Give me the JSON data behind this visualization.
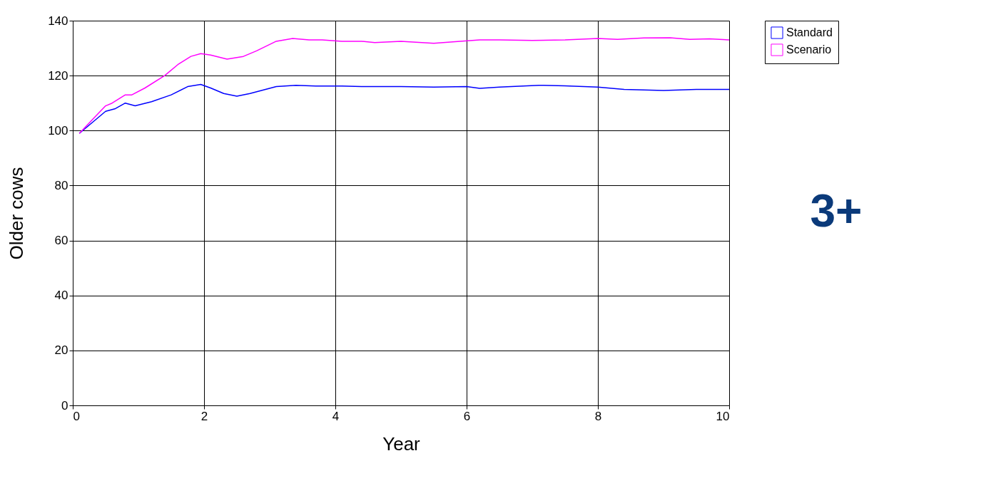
{
  "chart_data": {
    "type": "line",
    "xlabel": "Year",
    "ylabel": "Older cows",
    "xlim": [
      0,
      10
    ],
    "xticks": [
      0,
      2,
      4,
      6,
      8,
      10
    ],
    "ylim": [
      0,
      140
    ],
    "yticks": [
      0,
      20,
      40,
      60,
      80,
      100,
      120,
      140
    ],
    "grid": true,
    "legend": "top right",
    "marker": "none",
    "line_style": "solid",
    "annotations": [
      "3+"
    ],
    "series": [
      {
        "name": "Standard",
        "color": "#0000ff",
        "x": [
          0.1,
          0.3,
          0.5,
          0.65,
          0.8,
          0.95,
          1.2,
          1.5,
          1.75,
          1.95,
          2.1,
          2.3,
          2.5,
          2.7,
          3.1,
          3.4,
          3.7,
          4.1,
          4.4,
          5.0,
          5.5,
          6.0,
          6.2,
          6.5,
          7.1,
          7.5,
          8.0,
          8.4,
          9.0,
          9.5,
          10.0
        ],
        "values": [
          99,
          103,
          107,
          108,
          110,
          109,
          110.5,
          113,
          116,
          116.8,
          115.5,
          113.5,
          112.5,
          113.5,
          116,
          116.5,
          116.2,
          116.2,
          116,
          116,
          115.8,
          116,
          115.4,
          115.8,
          116.5,
          116.3,
          115.8,
          115,
          114.6,
          115,
          115
        ]
      },
      {
        "name": "Scenario",
        "color": "#ff00ff",
        "x": [
          0.1,
          0.3,
          0.5,
          0.6,
          0.8,
          0.9,
          1.1,
          1.4,
          1.6,
          1.8,
          1.95,
          2.1,
          2.35,
          2.6,
          2.8,
          3.1,
          3.35,
          3.6,
          3.8,
          4.1,
          4.4,
          4.6,
          5.0,
          5.5,
          5.9,
          6.2,
          6.5,
          7.0,
          7.5,
          8.0,
          8.3,
          8.7,
          9.1,
          9.4,
          9.7,
          10.0
        ],
        "values": [
          99,
          104,
          109,
          110,
          113,
          113,
          115.5,
          120,
          124,
          127,
          128,
          127.5,
          126,
          127,
          129,
          132.5,
          133.5,
          133,
          133,
          132.5,
          132.5,
          132,
          132.5,
          131.8,
          132.5,
          133,
          133,
          132.8,
          133,
          133.5,
          133.2,
          133.7,
          133.8,
          133.2,
          133.4,
          133
        ]
      }
    ]
  }
}
